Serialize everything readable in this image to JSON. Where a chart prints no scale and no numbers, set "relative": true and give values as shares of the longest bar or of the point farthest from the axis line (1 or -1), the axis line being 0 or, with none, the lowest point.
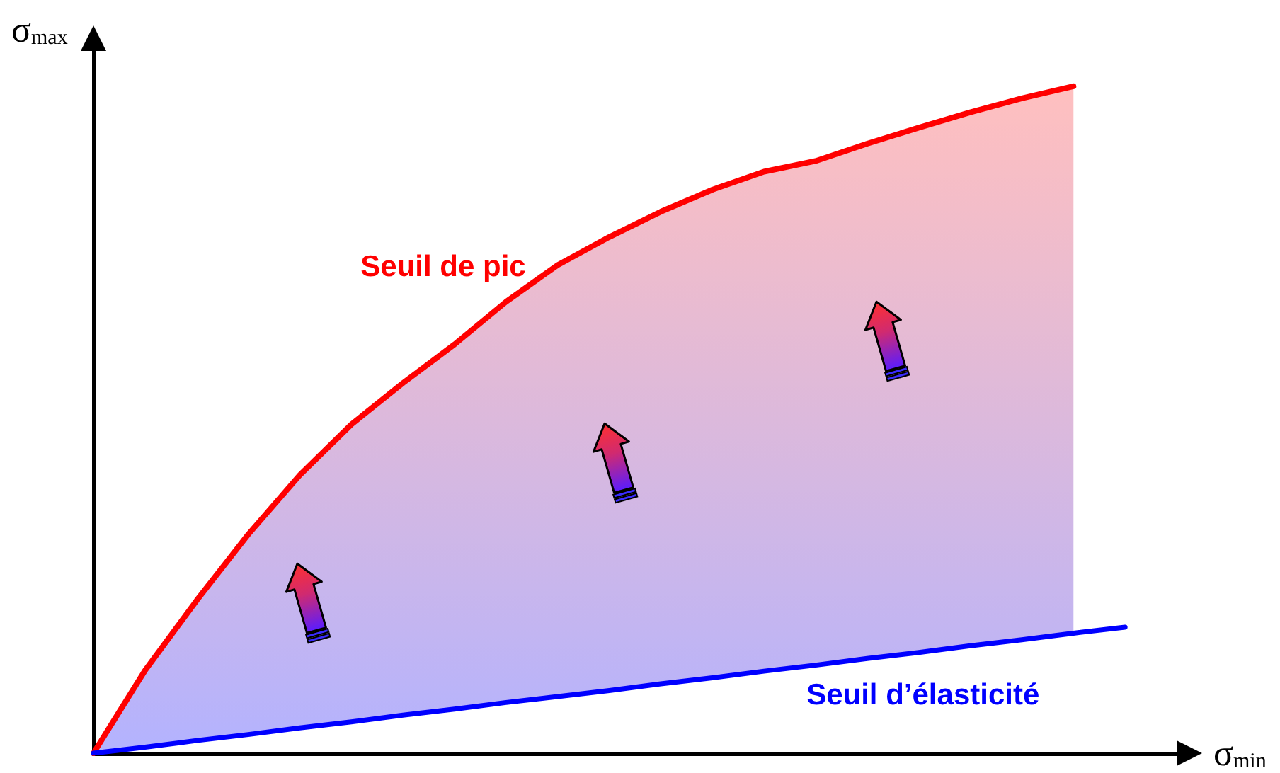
{
  "chart_data": {
    "type": "line",
    "relative": true,
    "xlabel": "σ$_{min}$",
    "ylabel": "σ$_{max}$",
    "categories": [
      null,
      null,
      null,
      null,
      null,
      null,
      null,
      null,
      null,
      null,
      null,
      null,
      null,
      null,
      null,
      null,
      null,
      null,
      null,
      null,
      null,
      null
    ],
    "series": [
      {
        "name": "Seuil de pic",
        "color": "#ff0000",
        "values": [
          0,
          0.124,
          0.229,
          0.328,
          0.417,
          0.493,
          0.555,
          0.613,
          0.677,
          0.732,
          0.774,
          0.812,
          0.845,
          0.872,
          0.888,
          0.914,
          0.938,
          0.961,
          0.982,
          1,
          null,
          null
        ],
        "lower": [
          0,
          0.009,
          0.019,
          0.028,
          0.038,
          0.047,
          0.057,
          0.066,
          0.076,
          0.085,
          0.094,
          0.104,
          0.113,
          0.123,
          0.132,
          0.142,
          0.151,
          0.161,
          0.17,
          0.18,
          null,
          null
        ],
        "upper": [
          0,
          0.124,
          0.229,
          0.328,
          0.417,
          0.493,
          0.555,
          0.613,
          0.677,
          0.732,
          0.774,
          0.812,
          0.845,
          0.872,
          0.888,
          0.914,
          0.938,
          0.961,
          0.982,
          1,
          null,
          null
        ]
      },
      {
        "name": "Seuil d’élasticité",
        "color": "#0000ff",
        "values": [
          0,
          0.009,
          0.019,
          0.028,
          0.038,
          0.047,
          0.057,
          0.066,
          0.076,
          0.085,
          0.094,
          0.104,
          0.113,
          0.123,
          0.132,
          0.142,
          0.151,
          0.161,
          0.17,
          0.18,
          0.189,
          null
        ]
      }
    ],
    "marker": "none"
  }
}
